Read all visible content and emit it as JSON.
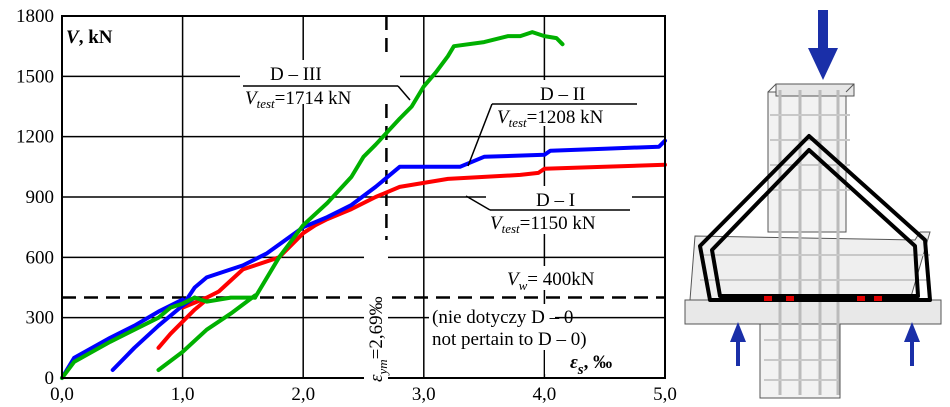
{
  "chart_data": {
    "type": "line",
    "y_axis_label": {
      "symbol": "V",
      "unit": ", kN"
    },
    "x_axis_label": {
      "symbol": "ε",
      "subscript": "s",
      "unit": ", ‰"
    },
    "xlim": [
      0,
      5
    ],
    "ylim": [
      0,
      1800
    ],
    "x_ticks": [
      "0,0",
      "1,0",
      "2,0",
      "3,0",
      "4,0",
      "5,0"
    ],
    "y_ticks": [
      "0",
      "300",
      "600",
      "900",
      "1200",
      "1500",
      "1800"
    ],
    "grid": true,
    "series": [
      {
        "name": "D – I",
        "capacity_label": "=1150 kN",
        "color": "#ff0000",
        "segments": [
          [
            [
              0.8,
              150
            ],
            [
              0.9,
              220
            ],
            [
              1.0,
              280
            ],
            [
              1.1,
              340
            ],
            [
              1.2,
              390
            ]
          ],
          [
            [
              1.0,
              350
            ],
            [
              1.2,
              400
            ],
            [
              1.3,
              430
            ],
            [
              1.5,
              540
            ],
            [
              1.6,
              560
            ],
            [
              1.8,
              600
            ],
            [
              1.9,
              660
            ],
            [
              2.0,
              720
            ],
            [
              2.1,
              760
            ],
            [
              2.2,
              790
            ],
            [
              2.4,
              840
            ],
            [
              2.6,
              900
            ],
            [
              2.8,
              950
            ],
            [
              3.0,
              970
            ],
            [
              3.2,
              990
            ],
            [
              3.5,
              1000
            ],
            [
              3.8,
              1010
            ],
            [
              3.95,
              1020
            ],
            [
              4.0,
              1040
            ],
            [
              4.5,
              1050
            ],
            [
              5.0,
              1060
            ]
          ]
        ]
      },
      {
        "name": "D – II",
        "capacity_label": "=1208 kN",
        "color": "#0000ff",
        "segments": [
          [
            [
              0.0,
              0
            ],
            [
              0.1,
              100
            ],
            [
              0.4,
              200
            ],
            [
              0.6,
              260
            ],
            [
              0.8,
              330
            ],
            [
              1.0,
              390
            ]
          ],
          [
            [
              0.42,
              40
            ],
            [
              0.6,
              150
            ],
            [
              0.8,
              260
            ],
            [
              1.0,
              360
            ],
            [
              1.1,
              400
            ]
          ],
          [
            [
              1.0,
              360
            ],
            [
              1.1,
              450
            ],
            [
              1.2,
              500
            ],
            [
              1.5,
              560
            ],
            [
              1.7,
              620
            ],
            [
              2.0,
              750
            ],
            [
              2.2,
              800
            ],
            [
              2.3,
              830
            ],
            [
              2.4,
              860
            ],
            [
              2.6,
              950
            ],
            [
              2.8,
              1050
            ],
            [
              3.3,
              1050
            ],
            [
              3.5,
              1100
            ],
            [
              4.0,
              1110
            ],
            [
              4.05,
              1130
            ],
            [
              4.5,
              1140
            ],
            [
              4.95,
              1150
            ],
            [
              5.0,
              1180
            ]
          ]
        ]
      },
      {
        "name": "D – III",
        "capacity_label": "=1714 kN",
        "color": "#00b000",
        "segments": [
          [
            [
              0.0,
              0
            ],
            [
              0.1,
              80
            ],
            [
              0.4,
              180
            ],
            [
              0.6,
              240
            ],
            [
              0.8,
              300
            ],
            [
              0.9,
              350
            ],
            [
              1.0,
              370
            ],
            [
              1.1,
              400
            ],
            [
              1.2,
              380
            ],
            [
              1.3,
              390
            ],
            [
              1.4,
              400
            ],
            [
              1.6,
              400
            ]
          ],
          [
            [
              0.8,
              40
            ],
            [
              1.0,
              130
            ],
            [
              1.2,
              240
            ],
            [
              1.4,
              320
            ],
            [
              1.6,
              410
            ]
          ],
          [
            [
              1.6,
              400
            ],
            [
              1.8,
              600
            ],
            [
              2.0,
              760
            ],
            [
              2.2,
              870
            ],
            [
              2.4,
              1000
            ],
            [
              2.5,
              1100
            ],
            [
              2.6,
              1160
            ],
            [
              2.8,
              1290
            ],
            [
              2.9,
              1350
            ],
            [
              3.0,
              1450
            ],
            [
              3.1,
              1520
            ],
            [
              3.2,
              1600
            ],
            [
              3.25,
              1650
            ],
            [
              3.5,
              1670
            ],
            [
              3.7,
              1700
            ],
            [
              3.8,
              1700
            ],
            [
              3.9,
              1720
            ],
            [
              4.0,
              1700
            ],
            [
              4.1,
              1690
            ],
            [
              4.15,
              1660
            ]
          ]
        ]
      }
    ],
    "reference_lines": [
      {
        "axis": "y",
        "value": 400,
        "dash": true,
        "label_symbol": "V",
        "label_sub": "w",
        "label_text": "= 400kN"
      },
      {
        "axis": "x",
        "value": 2.69,
        "dash": true,
        "label_symbol": "ε",
        "label_sub": "ym",
        "label_text": "=2,69‰"
      }
    ],
    "annotations": {
      "label_var": "V",
      "label_sub": "test",
      "note_line1": "(nie dotyczy D – 0",
      "note_line2": "not pertain to D – 0)"
    }
  },
  "figure": {
    "load_arrow_color": "#1a2fa8"
  }
}
